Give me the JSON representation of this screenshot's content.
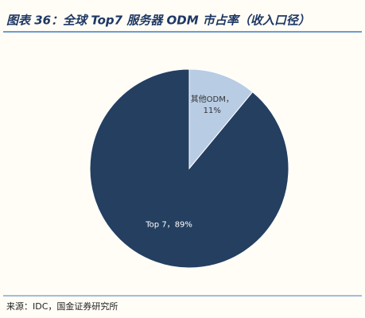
{
  "chart_data": {
    "type": "pie",
    "title": "图表 36：全球 Top7 服务器 ODM 市占率（收入口径）",
    "source": "来源：IDC，国金证券研究所",
    "categories": [
      "Top 7，",
      "其他ODM，"
    ],
    "values": [
      89,
      11
    ],
    "value_labels": [
      "89%",
      "11%"
    ],
    "colors": [
      "#243f60",
      "#b8cce4"
    ]
  }
}
